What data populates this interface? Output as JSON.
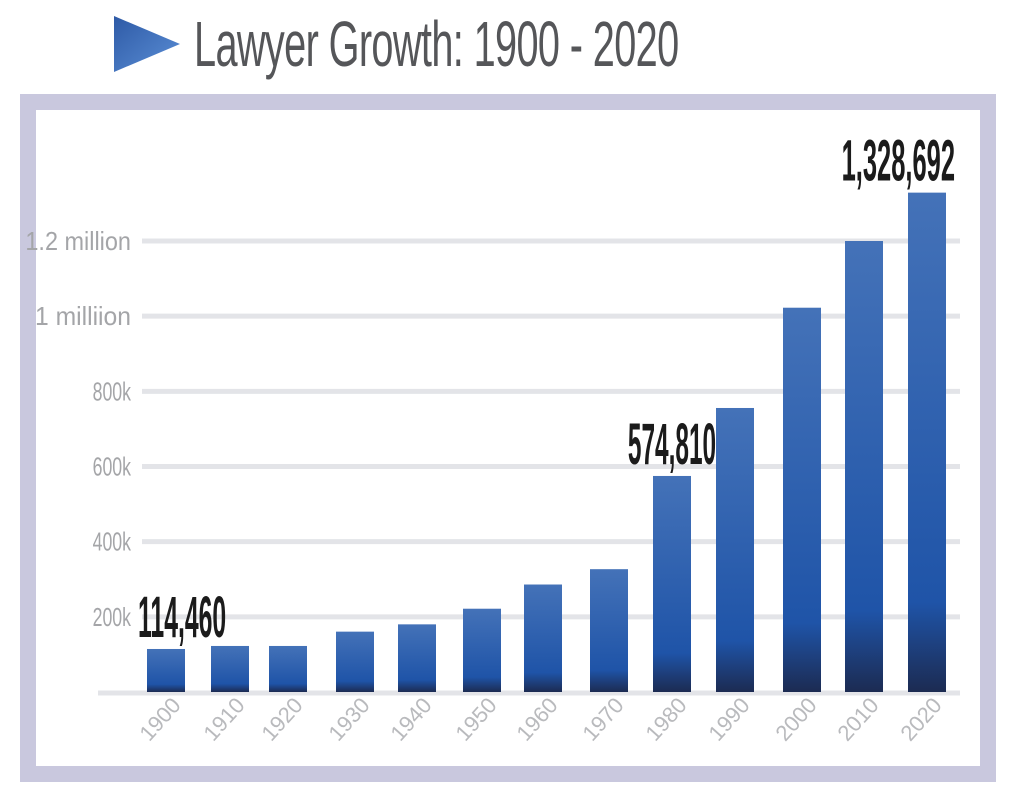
{
  "title": "Lawyer Growth:  1900 - 2020",
  "chart_data": {
    "type": "bar",
    "title": "Lawyer Growth:  1900 - 2020",
    "xlabel": "",
    "ylabel": "",
    "categories": [
      "1900",
      "1910",
      "1920",
      "1930",
      "1940",
      "1950",
      "1960",
      "1970",
      "1980",
      "1990",
      "2000",
      "2010",
      "2020"
    ],
    "values": [
      114460,
      122500,
      122500,
      160600,
      180000,
      221600,
      286000,
      326800,
      574810,
      755700,
      1022500,
      1200000,
      1328692
    ],
    "ylim": [
      0,
      1400000
    ],
    "grid": true,
    "yticks": [
      {
        "value": 200000,
        "label": "200k"
      },
      {
        "value": 400000,
        "label": "400k"
      },
      {
        "value": 600000,
        "label": "600k"
      },
      {
        "value": 800000,
        "label": "800k"
      },
      {
        "value": 1000000,
        "label": "1 milliion"
      },
      {
        "value": 1200000,
        "label": "1.2 million"
      }
    ],
    "annotations": [
      {
        "category": "1900",
        "text": "114,460"
      },
      {
        "category": "1980",
        "text": "574,810"
      },
      {
        "category": "2020",
        "text": "1,328,692"
      }
    ]
  },
  "colors": {
    "bar_top": "#4472b8",
    "bar_mid": "#1f54a8",
    "bar_bottom": "#1c2b52",
    "grid": "#e3e4e8",
    "frame": "#c9c8de",
    "arrow": "#3a67b3"
  }
}
